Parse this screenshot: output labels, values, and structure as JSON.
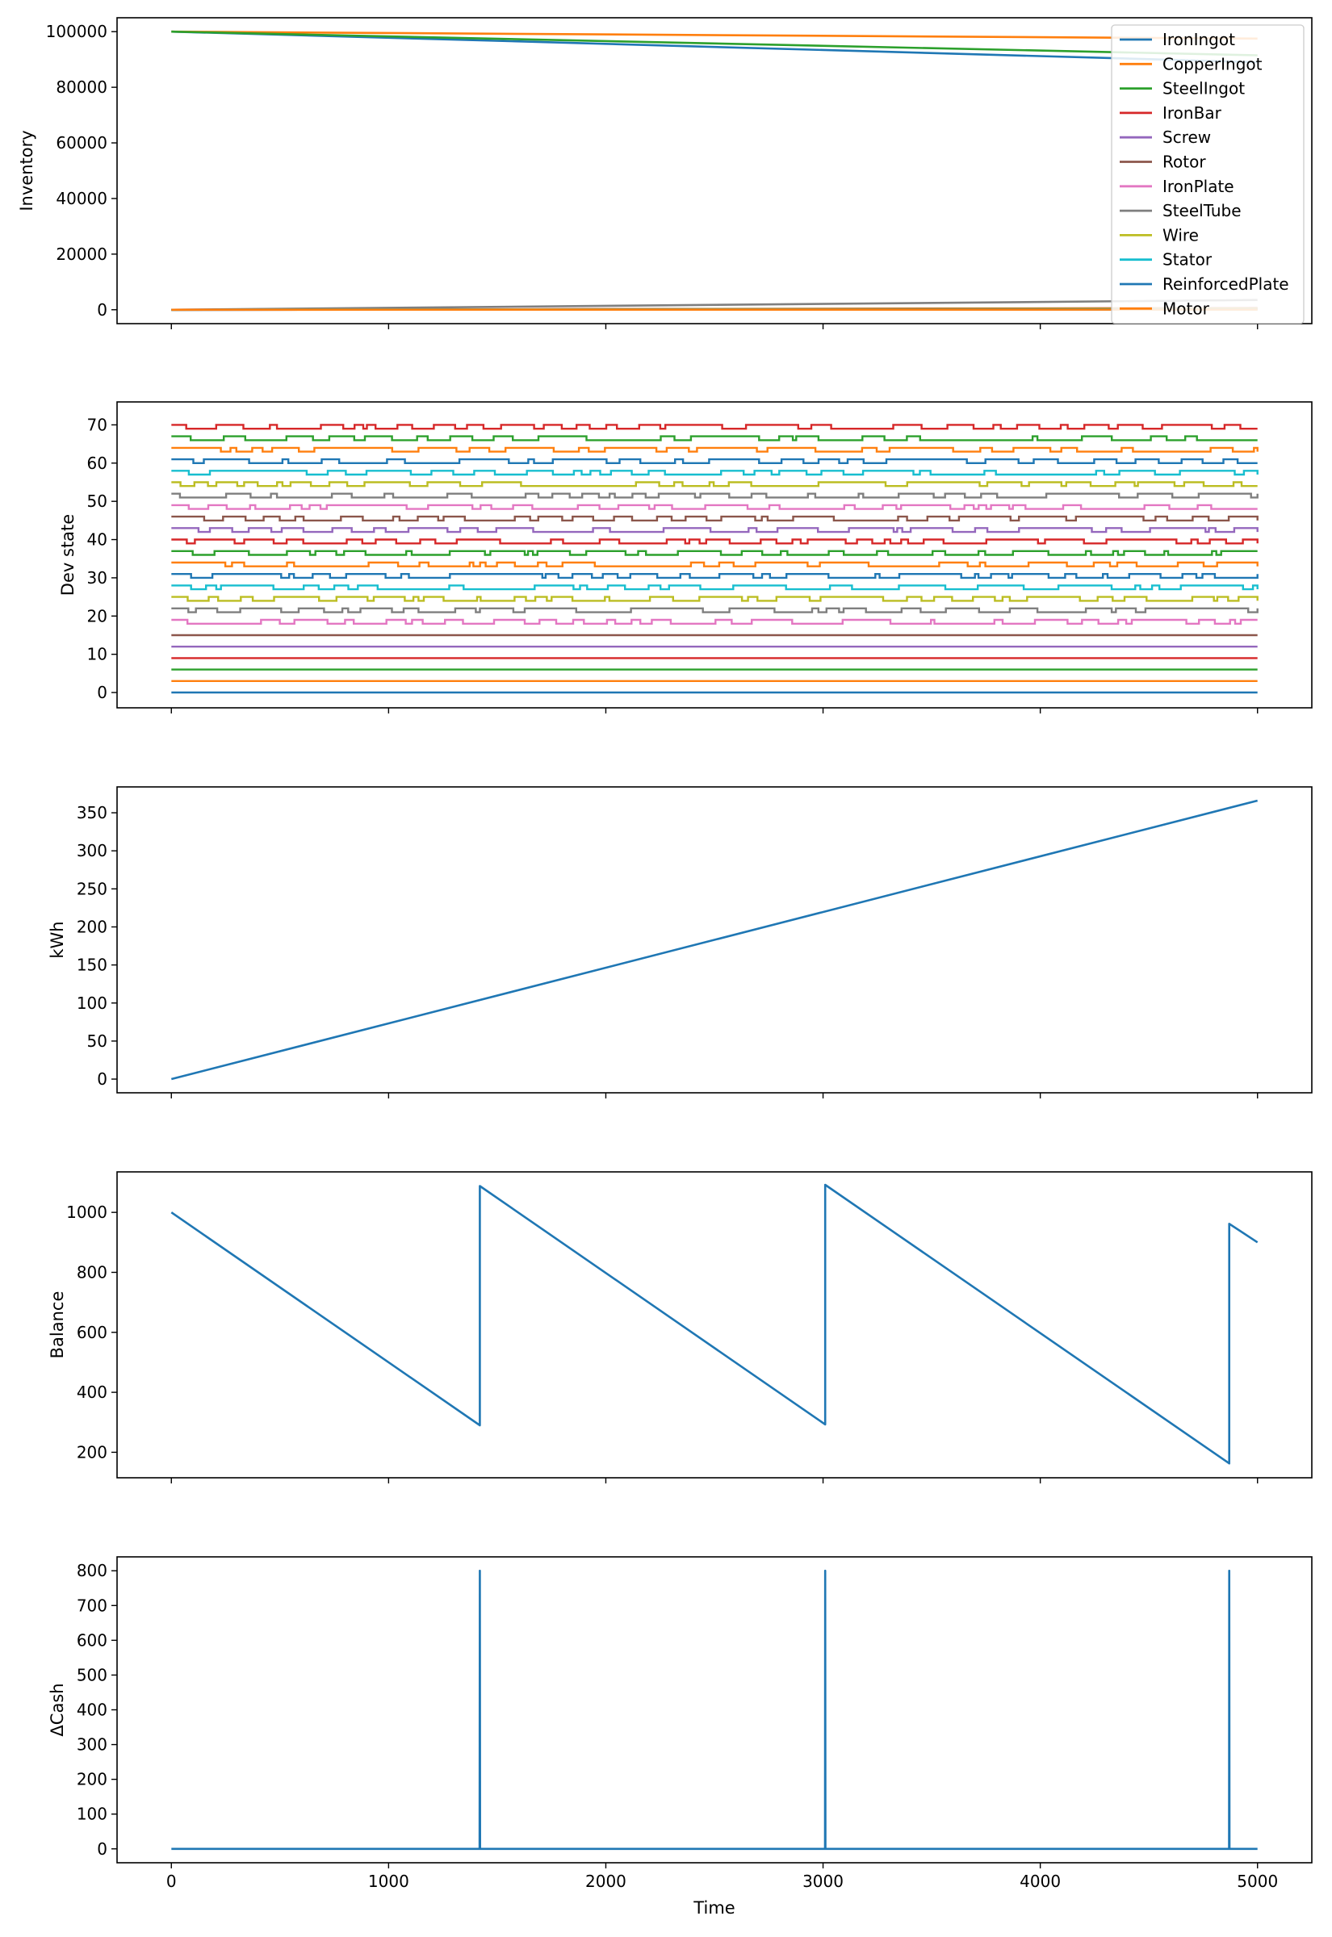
{
  "figure": {
    "shared_xlabel": "Time"
  },
  "colors": {
    "IronIngot": "#1f77b4",
    "CopperIngot": "#ff7f0e",
    "SteelIngot": "#2ca02c",
    "IronBar": "#d62728",
    "Screw": "#9467bd",
    "Rotor": "#8c564b",
    "IronPlate": "#e377c2",
    "SteelTube": "#7f7f7f",
    "Wire": "#bcbd22",
    "Stator": "#17becf",
    "ReinforcedPlate": "#1f77b4",
    "Motor": "#ff7f0e",
    "axis": "#000000",
    "background": "#ffffff"
  },
  "chart_data": [
    {
      "type": "line",
      "ylabel": "Inventory",
      "xlim": [
        -250,
        5250
      ],
      "ylim": [
        -5000,
        105000
      ],
      "yticks": [
        0,
        20000,
        40000,
        60000,
        80000,
        100000
      ],
      "legend_placement": "upper-right",
      "series": [
        {
          "name": "IronIngot",
          "x": [
            0,
            5000
          ],
          "y": [
            100000,
            89000
          ]
        },
        {
          "name": "CopperIngot",
          "x": [
            0,
            5000
          ],
          "y": [
            100000,
            97500
          ]
        },
        {
          "name": "SteelIngot",
          "x": [
            0,
            5000
          ],
          "y": [
            100000,
            91500
          ]
        },
        {
          "name": "IronBar",
          "x": [
            0,
            5000
          ],
          "y": [
            0,
            600
          ]
        },
        {
          "name": "Screw",
          "x": [
            0,
            5000
          ],
          "y": [
            0,
            300
          ]
        },
        {
          "name": "Rotor",
          "x": [
            0,
            5000
          ],
          "y": [
            0,
            500
          ]
        },
        {
          "name": "IronPlate",
          "x": [
            0,
            5000
          ],
          "y": [
            0,
            200
          ]
        },
        {
          "name": "SteelTube",
          "x": [
            0,
            5000
          ],
          "y": [
            0,
            3500
          ]
        },
        {
          "name": "Wire",
          "x": [
            0,
            5000
          ],
          "y": [
            0,
            400
          ]
        },
        {
          "name": "Stator",
          "x": [
            0,
            5000
          ],
          "y": [
            0,
            150
          ]
        },
        {
          "name": "ReinforcedPlate",
          "x": [
            0,
            5000
          ],
          "y": [
            0,
            100
          ]
        },
        {
          "name": "Motor",
          "x": [
            0,
            5000
          ],
          "y": [
            0,
            50
          ]
        }
      ]
    },
    {
      "type": "line",
      "ylabel": "Dev state",
      "xlim": [
        -250,
        5250
      ],
      "ylim": [
        -4,
        76
      ],
      "yticks": [
        0,
        10,
        20,
        30,
        40,
        50,
        60,
        70
      ],
      "note_series": "24 device state traces, baseline offsets 0,3,...,69; 0/1 pattern added to each",
      "baselines": [
        0,
        3,
        6,
        9,
        12,
        15,
        18,
        21,
        24,
        27,
        30,
        33,
        36,
        39,
        42,
        45,
        48,
        51,
        54,
        57,
        60,
        63,
        66,
        69
      ],
      "series_colors": [
        "#1f77b4",
        "#ff7f0e",
        "#2ca02c",
        "#d62728",
        "#9467bd",
        "#8c564b",
        "#e377c2",
        "#7f7f7f",
        "#bcbd22",
        "#17becf",
        "#1f77b4",
        "#ff7f0e",
        "#2ca02c",
        "#d62728",
        "#9467bd",
        "#8c564b",
        "#e377c2",
        "#7f7f7f",
        "#bcbd22",
        "#17becf",
        "#1f77b4",
        "#ff7f0e",
        "#2ca02c",
        "#d62728"
      ],
      "toggling": [
        false,
        false,
        false,
        false,
        false,
        false,
        true,
        true,
        true,
        true,
        true,
        true,
        true,
        true,
        true,
        true,
        true,
        true,
        true,
        true,
        true,
        true,
        true,
        true
      ]
    },
    {
      "type": "line",
      "ylabel": "kWh",
      "xlim": [
        -250,
        5250
      ],
      "ylim": [
        -18,
        384
      ],
      "yticks": [
        0,
        50,
        100,
        150,
        200,
        250,
        300,
        350
      ],
      "series": [
        {
          "x": [
            0,
            5000
          ],
          "y": [
            0,
            366
          ]
        }
      ]
    },
    {
      "type": "line",
      "ylabel": "Balance",
      "xlim": [
        -250,
        5250
      ],
      "ylim": [
        115,
        1135
      ],
      "yticks": [
        200,
        400,
        600,
        800,
        1000
      ],
      "series": [
        {
          "x": [
            0,
            1420,
            1420,
            3010,
            3010,
            4870,
            4870,
            5000
          ],
          "y": [
            1000,
            290,
            1088,
            293,
            1092,
            163,
            962,
            900
          ]
        }
      ]
    },
    {
      "type": "line",
      "ylabel": "ΔCash",
      "xlabel": "Time",
      "xlim": [
        -250,
        5250
      ],
      "ylim": [
        -40,
        840
      ],
      "xticks": [
        0,
        1000,
        2000,
        3000,
        4000,
        5000
      ],
      "yticks": [
        0,
        100,
        200,
        300,
        400,
        500,
        600,
        700,
        800
      ],
      "series": [
        {
          "x": [
            0,
            1419,
            1420,
            1421,
            3009,
            3010,
            3011,
            4869,
            4870,
            4871,
            5000
          ],
          "y": [
            0,
            0,
            800,
            0,
            0,
            800,
            0,
            0,
            800,
            0,
            0
          ]
        }
      ]
    }
  ]
}
